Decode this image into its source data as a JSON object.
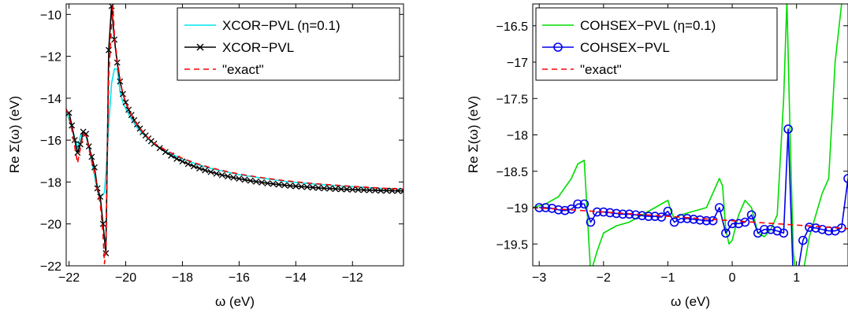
{
  "chart_data": [
    {
      "id": "left",
      "type": "line",
      "xlabel": "ω (eV)",
      "ylabel": "Re Σ(ω) (eV)",
      "xlim": [
        -22.1,
        -10.2
      ],
      "ylim": [
        -22,
        -9.5
      ],
      "xticks": [
        -22,
        -20,
        -18,
        -16,
        -14,
        -12
      ],
      "yticks": [
        -22,
        -20,
        -18,
        -16,
        -14,
        -12,
        -10
      ],
      "grid": false,
      "legend_position": "top-right",
      "series": [
        {
          "name": "XCOR−PVL (η=0.1)",
          "color": "#00e5ee",
          "marker": "none",
          "x": [
            -22.1,
            -21.9,
            -21.8,
            -21.7,
            -21.6,
            -21.5,
            -21.4,
            -21.3,
            -21.2,
            -21.1,
            -21.0,
            -20.9,
            -20.8,
            -20.75,
            -20.7,
            -20.6,
            -20.5,
            -20.4,
            -20.3,
            -20.2,
            -20.1,
            -20.0,
            -19.8,
            -19.6,
            -19.4,
            -19.2,
            -19.0,
            -18.5,
            -18.0,
            -17.5,
            -17.0,
            -16.5,
            -16.0,
            -15.5,
            -15.0,
            -14.5,
            -14.0,
            -13.5,
            -13.0,
            -12.5,
            -12.0,
            -11.5,
            -11.0,
            -10.5,
            -10.2
          ],
          "y": [
            -14.6,
            -15.4,
            -15.9,
            -16.4,
            -15.8,
            -15.6,
            -15.8,
            -16.3,
            -17.0,
            -17.7,
            -18.4,
            -18.7,
            -18.6,
            -18.5,
            -17.6,
            -15.3,
            -13.3,
            -12.6,
            -12.6,
            -13.7,
            -14.2,
            -14.5,
            -15.0,
            -15.4,
            -15.7,
            -15.95,
            -16.2,
            -16.6,
            -16.9,
            -17.15,
            -17.35,
            -17.5,
            -17.65,
            -17.75,
            -17.85,
            -17.95,
            -18.02,
            -18.08,
            -18.13,
            -18.18,
            -18.22,
            -18.26,
            -18.3,
            -18.33,
            -18.35
          ]
        },
        {
          "name": "XCOR−PVL",
          "color": "#000000",
          "marker": "x",
          "x": [
            -22.0,
            -21.9,
            -21.8,
            -21.7,
            -21.6,
            -21.5,
            -21.4,
            -21.3,
            -21.2,
            -21.1,
            -21.0,
            -20.9,
            -20.8,
            -20.7,
            -20.6,
            -20.5,
            -20.4,
            -20.3,
            -20.2,
            -20.1,
            -20.0,
            -19.9,
            -19.8,
            -19.7,
            -19.6,
            -19.5,
            -19.4,
            -19.3,
            -19.2,
            -19.1,
            -19.0,
            -18.8,
            -18.6,
            -18.4,
            -18.2,
            -18.0,
            -17.8,
            -17.6,
            -17.4,
            -17.2,
            -17.0,
            -16.8,
            -16.6,
            -16.4,
            -16.2,
            -16.0,
            -15.8,
            -15.6,
            -15.4,
            -15.2,
            -15.0,
            -14.8,
            -14.6,
            -14.4,
            -14.2,
            -14.0,
            -13.8,
            -13.6,
            -13.4,
            -13.2,
            -13.0,
            -12.8,
            -12.6,
            -12.4,
            -12.2,
            -12.0,
            -11.8,
            -11.6,
            -11.4,
            -11.2,
            -11.0,
            -10.8,
            -10.6,
            -10.4,
            -10.2
          ],
          "y": [
            -14.7,
            -15.3,
            -16.0,
            -16.6,
            -16.2,
            -15.6,
            -15.7,
            -16.3,
            -16.8,
            -17.3,
            -18.3,
            -18.7,
            -20.0,
            -21.4,
            -11.7,
            -9.6,
            -11.2,
            -12.3,
            -13.2,
            -13.8,
            -14.2,
            -14.55,
            -14.8,
            -15.05,
            -15.25,
            -15.45,
            -15.62,
            -15.78,
            -15.92,
            -16.05,
            -16.17,
            -16.38,
            -16.57,
            -16.74,
            -16.89,
            -17.02,
            -17.14,
            -17.25,
            -17.35,
            -17.44,
            -17.52,
            -17.6,
            -17.67,
            -17.73,
            -17.79,
            -17.84,
            -17.89,
            -17.94,
            -17.98,
            -18.02,
            -18.06,
            -18.09,
            -18.12,
            -18.15,
            -18.18,
            -18.2,
            -18.22,
            -18.24,
            -18.26,
            -18.28,
            -18.3,
            -18.31,
            -18.33,
            -18.34,
            -18.35,
            -18.36,
            -18.37,
            -18.38,
            -18.39,
            -18.4,
            -18.41,
            -18.41,
            -18.42,
            -18.42,
            -18.43
          ]
        },
        {
          "name": "\"exact\"",
          "color": "#ff0000",
          "marker": "none",
          "dashed": true,
          "x": [
            -22.1,
            -22.0,
            -21.9,
            -21.8,
            -21.7,
            -21.6,
            -21.5,
            -21.4,
            -21.3,
            -21.2,
            -21.1,
            -21.0,
            -20.9,
            -20.8,
            -20.75,
            -20.7,
            -20.6,
            -20.5,
            -20.45,
            -20.4,
            -20.3,
            -20.2,
            -20.1,
            -20.0,
            -19.8,
            -19.6,
            -19.4,
            -19.2,
            -19.0,
            -18.5,
            -18.0,
            -17.5,
            -17.0,
            -16.5,
            -16.0,
            -15.5,
            -15.0,
            -14.5,
            -14.0,
            -13.5,
            -13.0,
            -12.5,
            -12.0,
            -11.5,
            -11.0,
            -10.5,
            -10.2
          ],
          "y": [
            -14.5,
            -14.9,
            -15.5,
            -16.3,
            -17.1,
            -16.4,
            -15.7,
            -15.8,
            -16.4,
            -17.0,
            -17.5,
            -18.4,
            -19.0,
            -20.5,
            -21.9,
            -21.2,
            -13.0,
            -10.5,
            -9.6,
            -11.0,
            -12.2,
            -13.1,
            -13.8,
            -14.2,
            -14.8,
            -15.25,
            -15.6,
            -15.9,
            -16.15,
            -16.55,
            -16.87,
            -17.12,
            -17.32,
            -17.48,
            -17.62,
            -17.73,
            -17.83,
            -17.92,
            -17.99,
            -18.06,
            -18.11,
            -18.16,
            -18.21,
            -18.25,
            -18.29,
            -18.32,
            -18.34
          ]
        }
      ]
    },
    {
      "id": "right",
      "type": "line",
      "xlabel": "ω (eV)",
      "ylabel": "Re Σ(ω) (eV)",
      "xlim": [
        -3.1,
        1.8
      ],
      "ylim": [
        -19.8,
        -16.2
      ],
      "xticks": [
        -3,
        -2,
        -1,
        0,
        1
      ],
      "yticks": [
        -19.5,
        -19,
        -18.5,
        -18,
        -17.5,
        -17,
        -16.5
      ],
      "ytick_labels": [
        "−19.5",
        "−19",
        "−18.5",
        "−18",
        "−17.5",
        "−17",
        "−16.5"
      ],
      "grid": false,
      "legend_position": "top-left",
      "series": [
        {
          "name": "COHSEX−PVL (η=0.1)",
          "color": "#00dd00",
          "marker": "none",
          "x": [
            -3.1,
            -2.9,
            -2.7,
            -2.5,
            -2.4,
            -2.3,
            -2.2,
            -2.1,
            -2.0,
            -1.8,
            -1.6,
            -1.4,
            -1.2,
            -1.0,
            -0.95,
            -0.9,
            -0.8,
            -0.6,
            -0.4,
            -0.2,
            -0.15,
            -0.1,
            -0.05,
            0.0,
            0.1,
            0.2,
            0.3,
            0.4,
            0.5,
            0.6,
            0.7,
            0.8,
            0.85,
            0.9,
            0.95,
            1.0,
            1.1,
            1.2,
            1.3,
            1.4,
            1.5,
            1.6,
            1.7,
            1.8
          ],
          "y": [
            -19.0,
            -18.95,
            -18.85,
            -18.6,
            -18.4,
            -18.35,
            -19.9,
            -19.6,
            -19.35,
            -19.25,
            -19.2,
            -19.1,
            -19.0,
            -18.9,
            -19.05,
            -19.15,
            -19.1,
            -19.05,
            -19.0,
            -18.6,
            -18.7,
            -19.3,
            -19.5,
            -19.45,
            -19.1,
            -18.9,
            -19.0,
            -19.35,
            -19.4,
            -19.3,
            -19.1,
            -17.5,
            -16.15,
            -18.0,
            -19.6,
            -20.0,
            -19.9,
            -19.4,
            -19.1,
            -18.8,
            -18.6,
            -17.0,
            -16.2,
            -16.1
          ]
        },
        {
          "name": "COHSEX−PVL",
          "color": "#0000ee",
          "marker": "o",
          "x": [
            -3.0,
            -2.9,
            -2.8,
            -2.7,
            -2.6,
            -2.5,
            -2.4,
            -2.3,
            -2.2,
            -2.1,
            -2.0,
            -1.9,
            -1.8,
            -1.7,
            -1.6,
            -1.5,
            -1.4,
            -1.3,
            -1.2,
            -1.1,
            -1.0,
            -0.9,
            -0.8,
            -0.7,
            -0.6,
            -0.5,
            -0.4,
            -0.3,
            -0.2,
            -0.1,
            0.0,
            0.1,
            0.2,
            0.3,
            0.4,
            0.5,
            0.6,
            0.7,
            0.8,
            0.87,
            0.95,
            1.0,
            1.1,
            1.2,
            1.3,
            1.4,
            1.5,
            1.6,
            1.7,
            1.8
          ],
          "y": [
            -19.0,
            -19.0,
            -19.01,
            -19.03,
            -19.04,
            -19.02,
            -18.95,
            -18.95,
            -19.2,
            -19.06,
            -19.06,
            -19.07,
            -19.08,
            -19.09,
            -19.09,
            -19.1,
            -19.11,
            -19.12,
            -19.12,
            -19.13,
            -19.05,
            -19.2,
            -19.15,
            -19.15,
            -19.16,
            -19.17,
            -19.18,
            -19.18,
            -19.0,
            -19.35,
            -19.22,
            -19.22,
            -19.2,
            -19.1,
            -19.35,
            -19.3,
            -19.3,
            -19.32,
            -19.35,
            -17.92,
            -20.0,
            -20.0,
            -19.45,
            -19.27,
            -19.28,
            -19.3,
            -19.32,
            -19.32,
            -19.28,
            -18.6
          ]
        },
        {
          "name": "\"exact\"",
          "color": "#ff0000",
          "marker": "none",
          "dashed": true,
          "x": [
            -3.1,
            -2.5,
            -2.0,
            -1.5,
            -1.0,
            -0.5,
            0.0,
            0.5,
            1.0,
            1.5,
            1.8
          ],
          "y": [
            -19.0,
            -19.03,
            -19.06,
            -19.09,
            -19.12,
            -19.15,
            -19.18,
            -19.21,
            -19.24,
            -19.27,
            -19.29
          ]
        }
      ]
    }
  ]
}
